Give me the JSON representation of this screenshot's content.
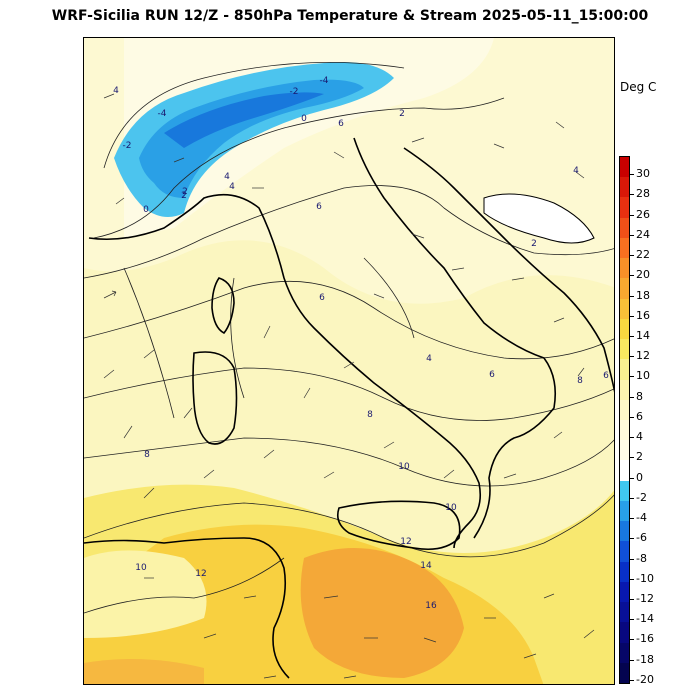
{
  "title": "WRF-Sicilia RUN 12/Z - 850hPa Temperature & Stream 2025-05-11_15:00:00",
  "unit_label": "Deg C",
  "colorbar": {
    "levels": [
      "30",
      "28",
      "26",
      "24",
      "22",
      "20",
      "18",
      "16",
      "14",
      "12",
      "10",
      "8",
      "6",
      "4",
      "2",
      "0",
      "-2",
      "-4",
      "-6",
      "-8",
      "-10",
      "-12",
      "-14",
      "-16",
      "-18",
      "-20"
    ],
    "colors": [
      "#c80000",
      "#d81808",
      "#e83010",
      "#f05018",
      "#f87020",
      "#f89028",
      "#f8a830",
      "#f8c038",
      "#f8d840",
      "#f8e860",
      "#f8f090",
      "#fcf4b0",
      "#fef8c8",
      "#fffbdc",
      "#fffde8",
      "#ffffff",
      "#40c8f0",
      "#28a0e8",
      "#1878e0",
      "#1050d8",
      "#0830c8",
      "#0818b0",
      "#081098",
      "#080880",
      "#060668",
      "#040450"
    ]
  },
  "map": {
    "contour_labels": [
      {
        "text": "-4"
      },
      {
        "text": "-4"
      },
      {
        "text": "-2"
      },
      {
        "text": "-2"
      },
      {
        "text": "0"
      },
      {
        "text": "0"
      },
      {
        "text": "2"
      },
      {
        "text": "2"
      },
      {
        "text": "2"
      },
      {
        "text": "4"
      },
      {
        "text": "4"
      },
      {
        "text": "4"
      },
      {
        "text": "4"
      },
      {
        "text": "6"
      },
      {
        "text": "6"
      },
      {
        "text": "6"
      },
      {
        "text": "6"
      },
      {
        "text": "6"
      },
      {
        "text": "8"
      },
      {
        "text": "8"
      },
      {
        "text": "8"
      },
      {
        "text": "10"
      },
      {
        "text": "10"
      },
      {
        "text": "10"
      },
      {
        "text": "12"
      },
      {
        "text": "12"
      },
      {
        "text": "14"
      },
      {
        "text": "16"
      },
      {
        "text": "2"
      },
      {
        "text": "4"
      }
    ]
  }
}
